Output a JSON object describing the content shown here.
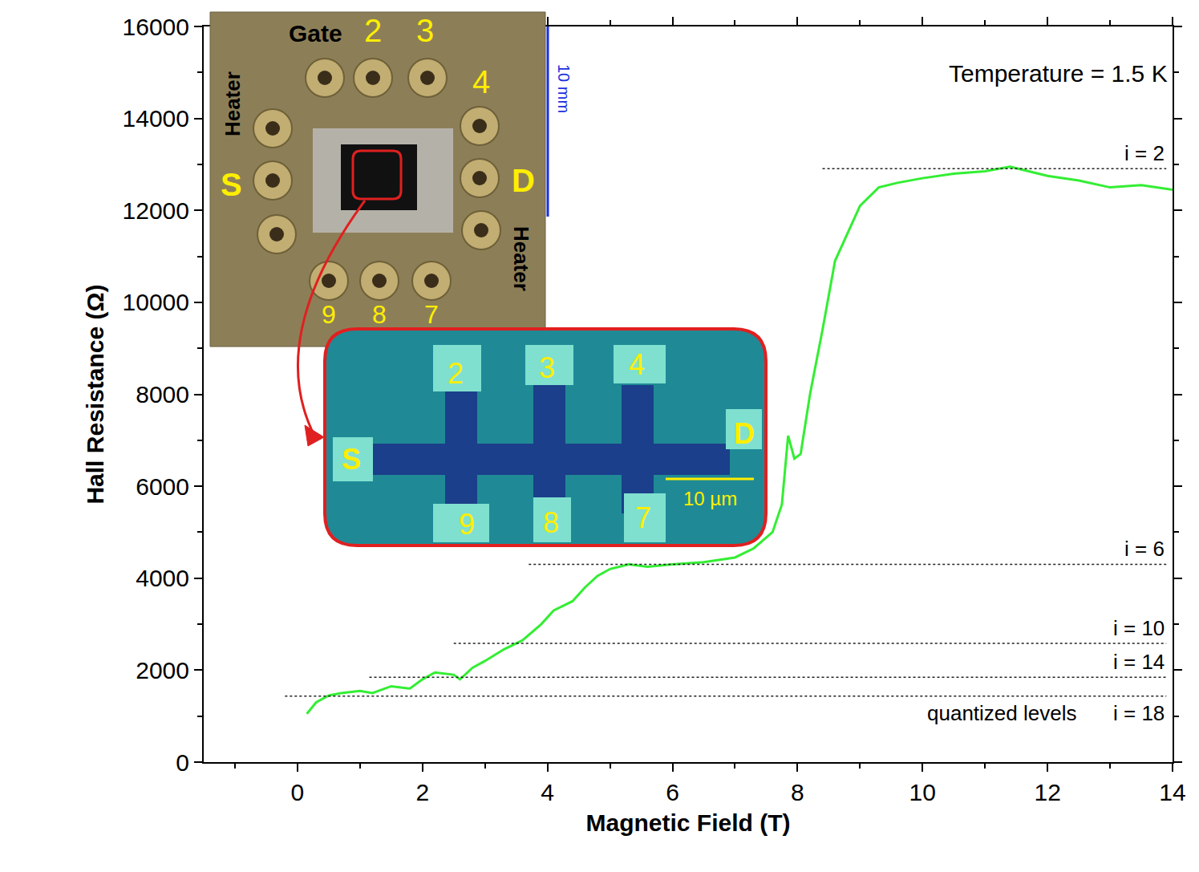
{
  "chart_data": {
    "type": "line",
    "x_label": "Magnetic Field (T)",
    "y_label": "Hall Resistance (Ω)",
    "xlim": [
      -1.5,
      14
    ],
    "xticks": [
      0,
      2,
      4,
      6,
      8,
      10,
      12,
      14
    ],
    "ylim": [
      0,
      16000
    ],
    "yticks": [
      0,
      2000,
      4000,
      6000,
      8000,
      10000,
      12000,
      14000,
      16000
    ],
    "grid": false,
    "series": [
      {
        "color": "#33ee33",
        "x": [
          0.15,
          0.3,
          0.5,
          0.7,
          1.0,
          1.2,
          1.5,
          1.8,
          2.0,
          2.2,
          2.5,
          2.6,
          2.8,
          3.0,
          3.3,
          3.6,
          3.9,
          4.1,
          4.4,
          4.6,
          4.8,
          5.0,
          5.3,
          5.6,
          6.0,
          6.5,
          7.0,
          7.3,
          7.6,
          7.75,
          7.85,
          7.95,
          8.05,
          8.2,
          8.4,
          8.6,
          8.8,
          9.0,
          9.3,
          9.6,
          10.0,
          10.5,
          11.0,
          11.4,
          12.0,
          12.5,
          13.0,
          13.5,
          14.0
        ],
        "values": [
          1050,
          1300,
          1450,
          1500,
          1550,
          1500,
          1650,
          1600,
          1800,
          1950,
          1900,
          1800,
          2050,
          2200,
          2450,
          2650,
          3000,
          3300,
          3500,
          3800,
          4050,
          4200,
          4300,
          4250,
          4300,
          4350,
          4450,
          4650,
          5000,
          5600,
          7100,
          6600,
          6700,
          8000,
          9400,
          10900,
          11500,
          12100,
          12500,
          12600,
          12700,
          12800,
          12850,
          12950,
          12750,
          12650,
          12500,
          12550,
          12450
        ]
      }
    ],
    "levels": [
      {
        "label": "i = 2",
        "value": 12906,
        "x": [
          8.4,
          13.9
        ]
      },
      {
        "label": "i = 6",
        "value": 4302,
        "x": [
          3.7,
          13.9
        ]
      },
      {
        "label": "i = 10",
        "value": 2581,
        "x": [
          2.5,
          13.9
        ]
      },
      {
        "label": "i = 14",
        "value": 1844,
        "x": [
          1.15,
          13.9
        ]
      },
      {
        "label": "i = 18",
        "value": 1434,
        "x": [
          -0.2,
          13.9
        ]
      }
    ],
    "levels_title": "quantized levels",
    "annotations": [
      "Temperature = 1.5 K"
    ],
    "inset": {
      "board_labels": [
        "Gate",
        "2",
        "3",
        "4",
        "S",
        "D",
        "Heater",
        "Heater",
        "9",
        "8",
        "7"
      ],
      "board_scale": "10 mm",
      "device_labels": [
        "2",
        "3",
        "4",
        "S",
        "D",
        "9",
        "8",
        "7"
      ],
      "device_scale": "10 µm"
    }
  }
}
